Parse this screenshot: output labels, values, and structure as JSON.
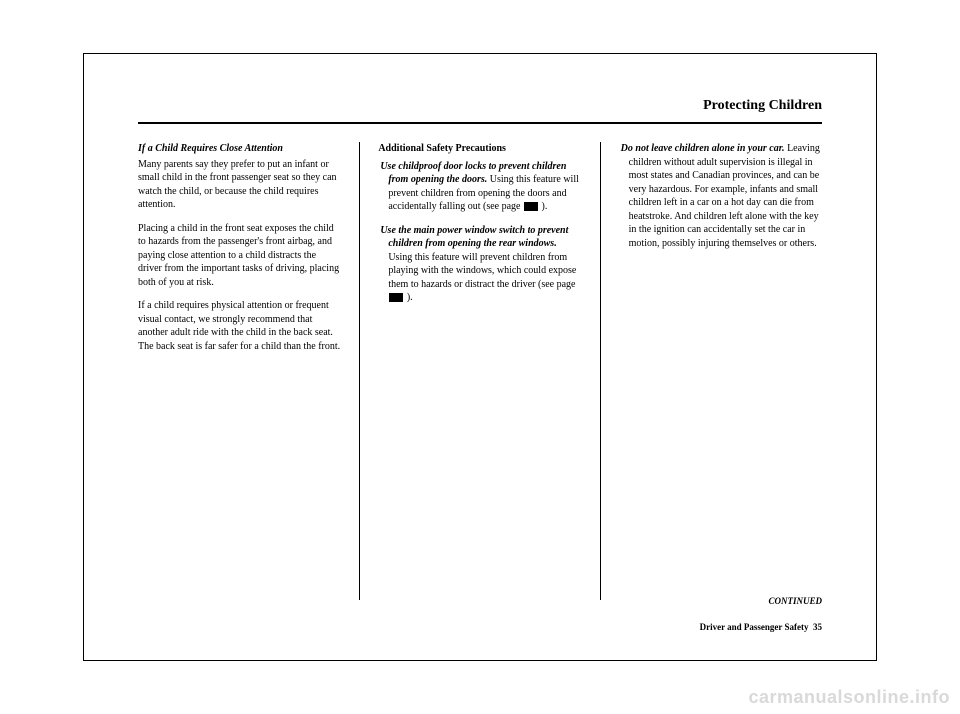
{
  "header": {
    "title": "Protecting Children"
  },
  "col1": {
    "subhead": "If a Child Requires Close Attention",
    "p1": "Many parents say they prefer to put an infant or small child in the front passenger seat so they can watch the child, or because the child requires attention.",
    "p2": "Placing a child in the front seat exposes the child to hazards from the passenger's front airbag, and paying close attention to a child distracts the driver from the important tasks of driving, placing both of you at risk.",
    "p3": "If a child requires physical attention or frequent visual contact, we strongly recommend that another adult ride with the child in the back seat. The back seat is far safer for a child than the front."
  },
  "col2": {
    "section": "Additional Safety Precautions",
    "b1_head": "Use childproof door locks to prevent children from opening the doors.",
    "b1_body": " Using this feature will prevent children from opening the doors and accidentally falling out (see page ",
    "b1_tail": " ).",
    "b2_head": "Use the main power window switch to prevent children from opening the rear windows.",
    "b2_body": " Using this feature will prevent children from playing with the windows, which could expose them to hazards or distract the driver (see page ",
    "b2_tail": " )."
  },
  "col3": {
    "b3_head": "Do not leave children alone in your car.",
    "b3_body": " Leaving children without adult supervision is illegal in most states and Canadian provinces, and can be very hazardous. For example, infants and small children left in a car on a hot day can die from heatstroke. And children left alone with the key in the ignition can accidentally set the car in motion, possibly injuring themselves or others."
  },
  "continued": "CONTINUED",
  "footer": {
    "section": "Driver and Passenger Safety",
    "page": "35"
  },
  "watermark": "carmanualsonline.info"
}
